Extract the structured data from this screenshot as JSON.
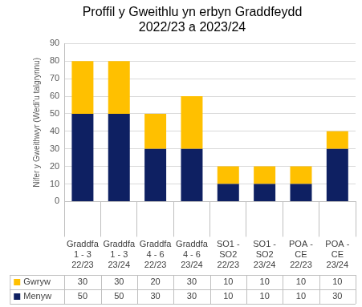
{
  "chart_data": {
    "type": "bar",
    "title": "Proffil y Gweithlu yn erbyn Graddfeydd 2022/23 a 2023/24",
    "y_label": "Nifer y Gweithwyr (Wedi'u talgrynnu)",
    "categories": [
      "Graddfa 1 - 3 22/23",
      "Graddfa 1 - 3 23/24",
      "Graddfa 4 - 6 22/23",
      "Graddfa 4 - 6 23/24",
      "SO1 - SO2 22/23",
      "SO1 - SO2 23/24",
      "POA - CE 22/23",
      "POA - CE 23/24"
    ],
    "series": [
      {
        "name": "Gwryw",
        "color": "#ffc000",
        "values": [
          30,
          30,
          20,
          30,
          10,
          10,
          10,
          10
        ]
      },
      {
        "name": "Menyw",
        "color": "#0e2062",
        "values": [
          50,
          50,
          30,
          30,
          10,
          10,
          10,
          30
        ]
      }
    ],
    "stacked": true,
    "ylim": [
      0,
      90
    ],
    "yticks": [
      0,
      10,
      20,
      30,
      40,
      50,
      60,
      70,
      80,
      90
    ],
    "grid": true
  }
}
